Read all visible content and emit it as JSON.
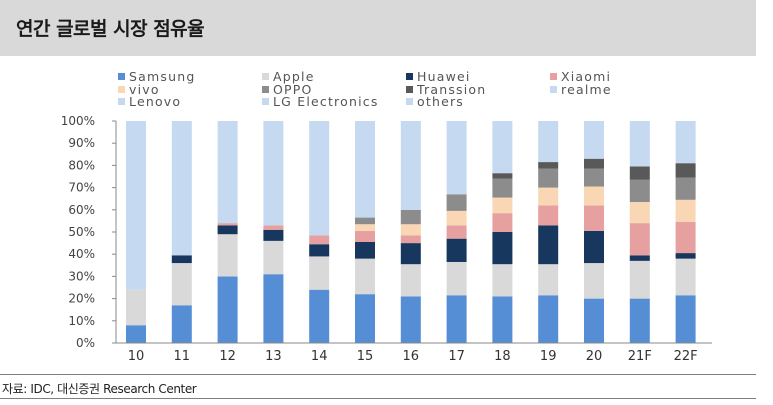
{
  "header": {
    "title": "연간 글로벌 시장 점유율"
  },
  "footer": {
    "source": "자료: IDC, 대신증권 Research Center"
  },
  "colors": {
    "Samsung": "#558ed5",
    "Apple": "#d9d9d9",
    "Huawei": "#17375e",
    "Xiaomi": "#e6a0a0",
    "vivo": "#fad7b4",
    "OPPO": "#8c8c8c",
    "Transsion": "#595959",
    "realme": "#c5d9f1",
    "Lenovo": "#c5d9f1",
    "LG Electronics": "#c5d9f1",
    "others": "#c5d9f1"
  },
  "chart_data": {
    "type": "bar",
    "stacked": true,
    "title": "연간 글로벌 시장 점유율",
    "xlabel": "",
    "ylabel": "",
    "ylim": [
      0,
      100
    ],
    "y_ticks": [
      "0%",
      "10%",
      "20%",
      "30%",
      "40%",
      "50%",
      "60%",
      "70%",
      "80%",
      "90%",
      "100%"
    ],
    "categories": [
      "10",
      "11",
      "12",
      "13",
      "14",
      "15",
      "16",
      "17",
      "18",
      "19",
      "20",
      "21F",
      "22F"
    ],
    "legend_position": "top",
    "series": [
      {
        "name": "Samsung",
        "values": [
          8,
          17,
          30,
          31,
          24,
          22,
          21,
          21.5,
          21,
          21.5,
          20,
          20,
          21.5
        ]
      },
      {
        "name": "Apple",
        "values": [
          16,
          19,
          19,
          15,
          15,
          16,
          14.5,
          15,
          14.5,
          14,
          16,
          17,
          16.5
        ]
      },
      {
        "name": "Huawei",
        "values": [
          0,
          3.5,
          4,
          5,
          5.5,
          7.5,
          9.5,
          10.5,
          14.5,
          17.5,
          14.5,
          2.5,
          2.5
        ]
      },
      {
        "name": "Xiaomi",
        "values": [
          0,
          0,
          1,
          2,
          4,
          5,
          3.5,
          6,
          8.5,
          9,
          11.5,
          14.5,
          14
        ]
      },
      {
        "name": "vivo",
        "values": [
          0,
          0,
          0,
          0,
          0,
          3,
          5,
          6.5,
          7,
          8,
          8.5,
          9.5,
          10
        ]
      },
      {
        "name": "OPPO",
        "values": [
          0,
          0,
          0,
          0,
          0,
          3,
          6.5,
          7.5,
          8.5,
          8.5,
          8,
          10,
          10
        ]
      },
      {
        "name": "Transsion",
        "values": [
          0,
          0,
          0,
          0,
          0,
          0,
          0,
          0,
          2.5,
          3,
          4.5,
          6,
          6.5
        ]
      },
      {
        "name": "realme",
        "values": [
          0,
          0,
          0,
          0,
          0,
          0,
          0,
          0,
          0,
          0,
          0,
          0,
          0
        ]
      },
      {
        "name": "Lenovo",
        "values": [
          0,
          0,
          0,
          0,
          0,
          0,
          0,
          0,
          0,
          0,
          0,
          0,
          0
        ]
      },
      {
        "name": "LG Electronics",
        "values": [
          0,
          0,
          0,
          0,
          0,
          0,
          0,
          0,
          0,
          0,
          0,
          0,
          0
        ]
      },
      {
        "name": "others",
        "values": [
          76,
          60.5,
          46,
          47,
          51.5,
          43.5,
          40,
          33,
          23.5,
          18.5,
          17,
          20.5,
          19
        ]
      }
    ]
  }
}
